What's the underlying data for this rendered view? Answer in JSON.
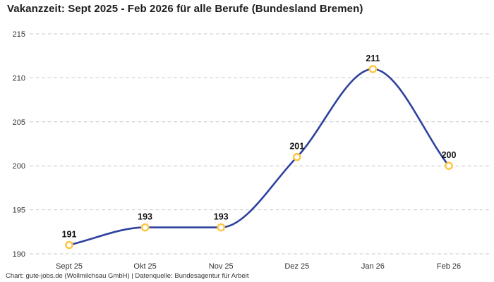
{
  "header": {
    "title": "Vakanzzeit: Sept 2025 - Feb 2026 für alle Berufe (Bundesland Bremen)"
  },
  "footer": {
    "credit": "Chart: gute-jobs.de (Wollmilchsau GmbH) | Datenquelle: Bundesagentur für Arbeit"
  },
  "chart_data": {
    "type": "line",
    "title": "Vakanzzeit: Sept 2025 - Feb 2026 für alle Berufe (Bundesland Bremen)",
    "categories": [
      "Sept 25",
      "Okt 25",
      "Nov 25",
      "Dez 25",
      "Jan 26",
      "Feb 26"
    ],
    "values": [
      191,
      193,
      193,
      201,
      211,
      200
    ],
    "data_labels": [
      "191",
      "193",
      "193",
      "201",
      "211",
      "200"
    ],
    "xlabel": "",
    "ylabel": "",
    "ylim": [
      190,
      215
    ],
    "yticks": [
      190,
      195,
      200,
      205,
      210,
      215
    ],
    "grid": "horizontal-dashed",
    "legend": "none",
    "line_smoothing": "monotone",
    "colors": {
      "line": "#2E429E",
      "marker_stroke": "#FFC53D",
      "marker_fill": "#FFFFFF",
      "grid": "#C8C8C8",
      "axis_text": "#333333",
      "value_label_text": "#111111",
      "title_text": "#1E1E1E",
      "background": "#FFFFFF"
    }
  }
}
